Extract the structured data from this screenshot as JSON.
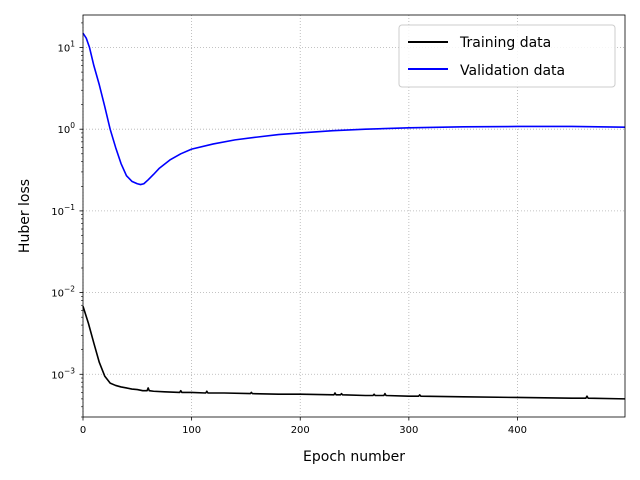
{
  "chart_data": {
    "type": "line",
    "title": "",
    "xlabel": "Epoch number",
    "ylabel": "Huber loss",
    "yscale": "log",
    "xlim": [
      0,
      499
    ],
    "ylim": [
      0.0003,
      25
    ],
    "grid": true,
    "legend_position": "top-right",
    "x_ticks": [
      {
        "value": 0,
        "label": "0"
      },
      {
        "value": 100,
        "label": "100"
      },
      {
        "value": 200,
        "label": "200"
      },
      {
        "value": 300,
        "label": "300"
      },
      {
        "value": 400,
        "label": "400"
      }
    ],
    "y_ticks": [
      {
        "value": 0.001,
        "base": "10",
        "exp": "−3"
      },
      {
        "value": 0.01,
        "base": "10",
        "exp": "−2"
      },
      {
        "value": 0.1,
        "base": "10",
        "exp": "−1"
      },
      {
        "value": 1,
        "base": "10",
        "exp": "0"
      },
      {
        "value": 10,
        "base": "10",
        "exp": "1"
      }
    ],
    "series": [
      {
        "name": "Training data",
        "color": "#000000",
        "x": [
          0,
          5,
          10,
          15,
          20,
          25,
          30,
          35,
          40,
          45,
          50,
          55,
          59,
          60,
          61,
          65,
          75,
          89,
          90,
          91,
          100,
          113,
          114,
          115,
          130,
          154,
          155,
          156,
          180,
          200,
          231,
          232,
          233,
          237,
          238,
          239,
          260,
          267,
          268,
          269,
          277,
          278,
          279,
          300,
          309,
          310,
          311,
          350,
          400,
          450,
          463,
          464,
          465,
          499
        ],
        "values": [
          0.0068,
          0.0042,
          0.0024,
          0.0014,
          0.00095,
          0.00078,
          0.00073,
          0.0007,
          0.00068,
          0.00066,
          0.00065,
          0.00063,
          0.00063,
          0.00068,
          0.00063,
          0.00062,
          0.00061,
          0.0006,
          0.00063,
          0.0006,
          0.0006,
          0.00059,
          0.00062,
          0.00059,
          0.00059,
          0.00058,
          0.0006,
          0.00058,
          0.00057,
          0.00057,
          0.00056,
          0.00059,
          0.00056,
          0.00056,
          0.00058,
          0.00056,
          0.00055,
          0.00055,
          0.00057,
          0.00055,
          0.00055,
          0.00058,
          0.00055,
          0.00054,
          0.00054,
          0.00056,
          0.00054,
          0.00053,
          0.00052,
          0.00051,
          0.00051,
          0.00054,
          0.00051,
          0.0005
        ]
      },
      {
        "name": "Validation data",
        "color": "#0000ff",
        "x": [
          0,
          3,
          6,
          10,
          15,
          20,
          25,
          30,
          35,
          40,
          45,
          50,
          53,
          56,
          60,
          65,
          70,
          80,
          90,
          100,
          120,
          140,
          160,
          180,
          200,
          230,
          260,
          300,
          350,
          400,
          450,
          499
        ],
        "values": [
          15,
          13,
          10,
          6,
          3.5,
          1.9,
          1.0,
          0.6,
          0.38,
          0.27,
          0.23,
          0.215,
          0.21,
          0.215,
          0.24,
          0.28,
          0.33,
          0.42,
          0.5,
          0.57,
          0.66,
          0.74,
          0.8,
          0.86,
          0.9,
          0.96,
          1.0,
          1.04,
          1.07,
          1.08,
          1.08,
          1.06
        ]
      }
    ]
  }
}
